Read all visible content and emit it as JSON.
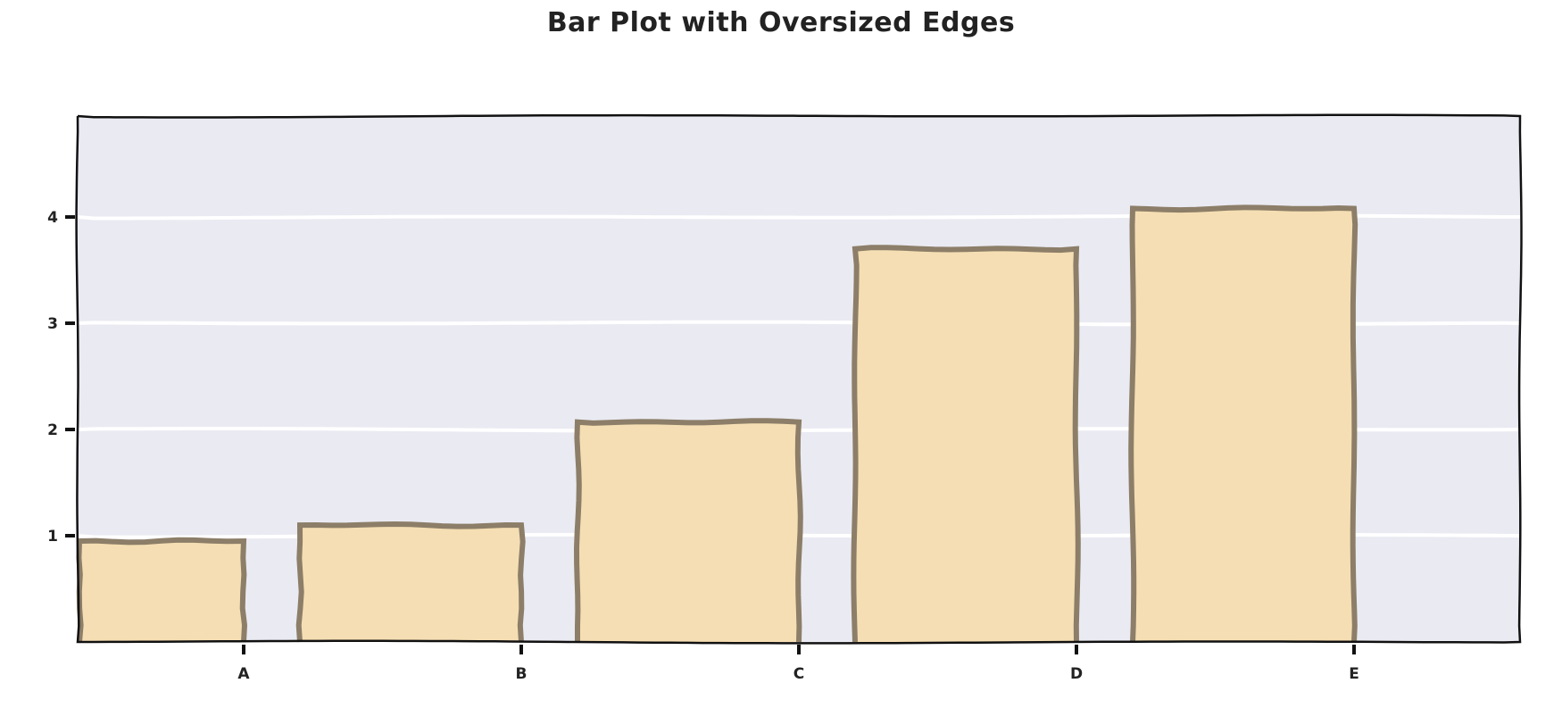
{
  "chart_data": {
    "type": "bar",
    "title": "Bar Plot with Oversized Edges",
    "categories": [
      "A",
      "B",
      "C",
      "D",
      "E"
    ],
    "values": [
      0.95,
      1.1,
      2.07,
      3.7,
      4.08
    ],
    "xlabel": "",
    "ylabel": "",
    "ylim": [
      0,
      4.95
    ],
    "yticks": [
      1,
      2,
      3,
      4
    ],
    "grid": true,
    "style": "xkcd",
    "colors": {
      "bar_fill": "#f5deb3",
      "bar_edge": "#8c7e68",
      "plot_background": "#eaeaf2",
      "grid": "#ffffff",
      "axis": "#111111"
    }
  }
}
